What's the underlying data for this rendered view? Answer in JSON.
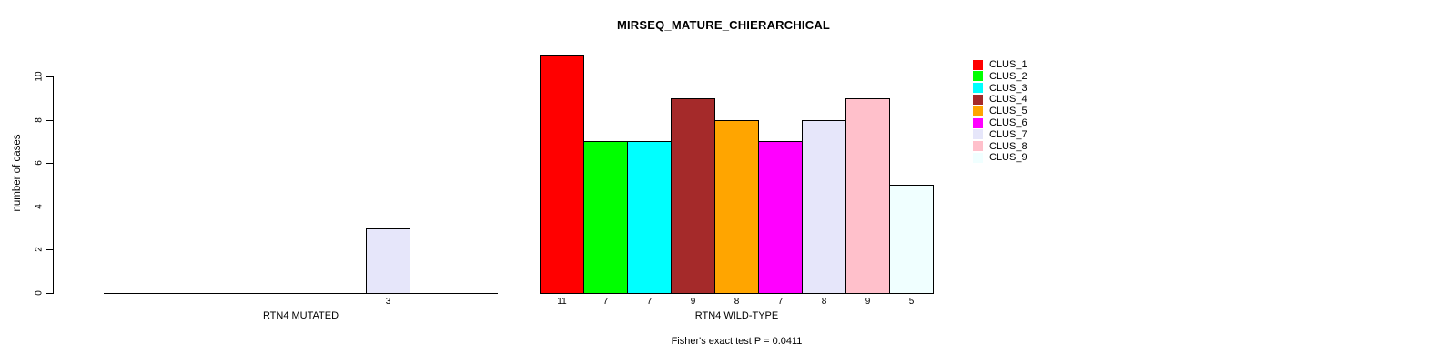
{
  "chart_data": {
    "type": "bar",
    "title": "MIRSEQ_MATURE_CHIERARCHICAL",
    "ylabel": "number of cases",
    "ylim": [
      0,
      11
    ],
    "yticks": [
      0,
      2,
      4,
      6,
      8,
      10
    ],
    "grid": false,
    "legend_position": "right",
    "clusters": [
      "CLUS_1",
      "CLUS_2",
      "CLUS_3",
      "CLUS_4",
      "CLUS_5",
      "CLUS_6",
      "CLUS_7",
      "CLUS_8",
      "CLUS_9"
    ],
    "colors": [
      "#FF0000",
      "#00FF00",
      "#00FFFF",
      "#A52A2A",
      "#FFA500",
      "#FF00FF",
      "#E6E6FA",
      "#FFC0CB",
      "#F0FFFF"
    ],
    "panels": [
      {
        "xlabel": "RTN4 MUTATED",
        "values": [
          0,
          0,
          0,
          0,
          0,
          0,
          3,
          0,
          0
        ]
      },
      {
        "xlabel": "RTN4 WILD-TYPE",
        "values": [
          11,
          7,
          7,
          9,
          8,
          7,
          8,
          9,
          5
        ]
      }
    ],
    "footnote": "Fisher's exact test P = 0.0411"
  }
}
